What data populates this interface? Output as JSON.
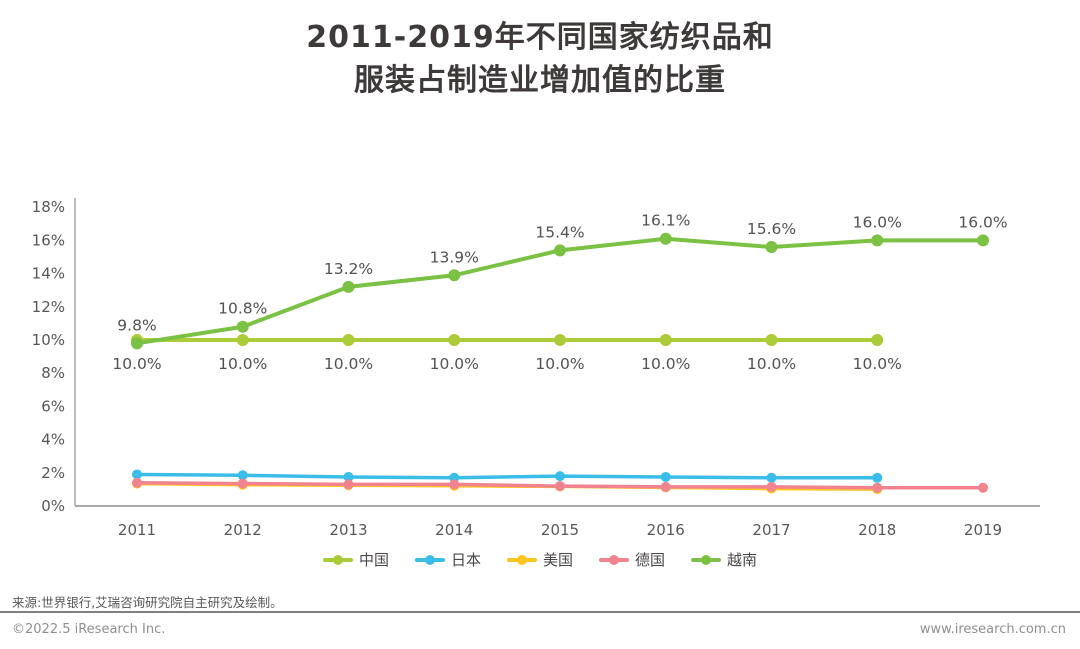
{
  "title": {
    "line1": "2011-2019年不同国家纺织品和",
    "line2": "服装占制造业增加值的比重"
  },
  "chart_data": {
    "type": "line",
    "title": "2011-2019年不同国家纺织品和服装占制造业增加值的比重",
    "categories": [
      "2011",
      "2012",
      "2013",
      "2014",
      "2015",
      "2016",
      "2017",
      "2018",
      "2019"
    ],
    "ylim": [
      0,
      18
    ],
    "grid": false,
    "legend_position": "bottom",
    "y_axis": {
      "tick_values": [
        0,
        2,
        4,
        6,
        8,
        10,
        12,
        14,
        16,
        18
      ],
      "tick_labels": [
        "0%",
        "2%",
        "4%",
        "6%",
        "8%",
        "10%",
        "12%",
        "14%",
        "16%",
        "18%"
      ]
    },
    "series": [
      {
        "id": "china",
        "name": "中国",
        "color": "#abcb38",
        "values": [
          10.0,
          10.0,
          10.0,
          10.0,
          10.0,
          10.0,
          10.0,
          10.0,
          null
        ],
        "labels": [
          "10.0%",
          "10.0%",
          "10.0%",
          "10.0%",
          "10.0%",
          "10.0%",
          "10.0%",
          "10.0%",
          null
        ],
        "label_position": "below"
      },
      {
        "id": "japan",
        "name": "日本",
        "color": "#3bbde9",
        "values": [
          1.9,
          1.85,
          1.75,
          1.7,
          1.8,
          1.75,
          1.7,
          1.7,
          null
        ]
      },
      {
        "id": "usa",
        "name": "美国",
        "color": "#ffc41e",
        "values": [
          1.35,
          1.28,
          1.25,
          1.22,
          1.18,
          1.12,
          1.05,
          1.02,
          null
        ]
      },
      {
        "id": "germany",
        "name": "德国",
        "color": "#f0838e",
        "values": [
          1.4,
          1.35,
          1.3,
          1.3,
          1.2,
          1.15,
          1.15,
          1.1,
          1.1
        ]
      },
      {
        "id": "vietnam",
        "name": "越南",
        "color": "#7bc143",
        "values": [
          9.8,
          10.8,
          13.2,
          13.9,
          15.4,
          16.1,
          15.6,
          16.0,
          16.0
        ],
        "labels": [
          "9.8%",
          "10.8%",
          "13.2%",
          "13.9%",
          "15.4%",
          "16.1%",
          "15.6%",
          "16.0%",
          "16.0%"
        ],
        "label_position": "above"
      }
    ]
  },
  "footer": {
    "source": "来源:世界银行,艾瑞咨询研究院自主研究及绘制。",
    "copyright": "©2022.5 iResearch Inc.",
    "website": "www.iresearch.com.cn"
  }
}
